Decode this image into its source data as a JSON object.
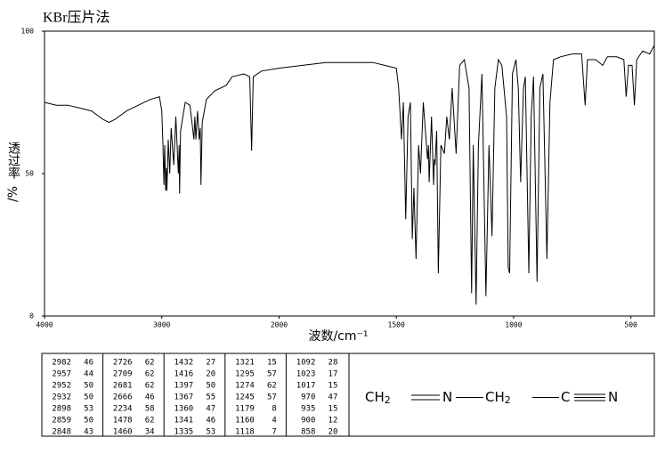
{
  "chart_data": {
    "type": "line",
    "title": "KBr压片法",
    "ylabel": "透过率",
    "yunit": "/%",
    "xlabel": "波数/cm⁻¹",
    "xlim": [
      4000,
      400
    ],
    "xticks": [
      4000,
      3000,
      2000,
      1500,
      1000,
      500
    ],
    "ylim": [
      0,
      100
    ],
    "yticks": [
      0,
      50,
      100
    ],
    "color": "#000000",
    "x": [
      4000,
      3900,
      3800,
      3700,
      3600,
      3500,
      3450,
      3400,
      3300,
      3200,
      3100,
      3020,
      3000,
      2990,
      2982,
      2975,
      2967,
      2960,
      2957,
      2952,
      2945,
      2932,
      2920,
      2898,
      2880,
      2859,
      2852,
      2848,
      2840,
      2800,
      2760,
      2726,
      2718,
      2709,
      2695,
      2681,
      2672,
      2666,
      2655,
      2620,
      2550,
      2450,
      2400,
      2300,
      2250,
      2234,
      2220,
      2150,
      2000,
      1900,
      1800,
      1700,
      1600,
      1550,
      1500,
      1490,
      1478,
      1470,
      1460,
      1450,
      1440,
      1432,
      1425,
      1416,
      1405,
      1397,
      1385,
      1367,
      1363,
      1360,
      1350,
      1341,
      1338,
      1335,
      1328,
      1321,
      1310,
      1295,
      1285,
      1274,
      1262,
      1245,
      1230,
      1210,
      1190,
      1179,
      1172,
      1160,
      1150,
      1135,
      1118,
      1105,
      1092,
      1080,
      1065,
      1050,
      1030,
      1023,
      1017,
      1005,
      990,
      980,
      970,
      958,
      950,
      935,
      925,
      915,
      900,
      888,
      875,
      858,
      845,
      830,
      800,
      750,
      710,
      695,
      685,
      650,
      620,
      600,
      560,
      530,
      520,
      510,
      495,
      485,
      475,
      450,
      420,
      400
    ],
    "values": [
      75,
      74,
      74,
      73,
      72,
      69,
      68,
      69,
      72,
      74,
      76,
      77,
      72,
      60,
      46,
      60,
      44,
      52,
      44,
      50,
      62,
      50,
      66,
      53,
      70,
      50,
      60,
      43,
      65,
      75,
      74,
      62,
      70,
      62,
      72,
      62,
      66,
      46,
      68,
      76,
      79,
      81,
      84,
      85,
      84,
      58,
      84,
      86,
      87,
      88,
      89,
      89,
      89,
      88,
      87,
      80,
      62,
      75,
      34,
      70,
      75,
      27,
      45,
      20,
      60,
      50,
      75,
      55,
      60,
      47,
      70,
      46,
      55,
      53,
      65,
      15,
      60,
      57,
      70,
      62,
      80,
      57,
      88,
      90,
      80,
      8,
      60,
      4,
      60,
      85,
      7,
      60,
      28,
      80,
      90,
      88,
      70,
      17,
      15,
      85,
      90,
      80,
      47,
      80,
      84,
      15,
      70,
      84,
      12,
      80,
      85,
      20,
      75,
      90,
      91,
      92,
      92,
      74,
      90,
      90,
      88,
      91,
      91,
      90,
      77,
      88,
      88,
      74,
      90,
      93,
      92,
      95
    ]
  },
  "table": {
    "blocks": [
      [
        [
          2982,
          46
        ],
        [
          2957,
          44
        ],
        [
          2952,
          50
        ],
        [
          2932,
          50
        ],
        [
          2898,
          53
        ],
        [
          2859,
          50
        ],
        [
          2848,
          43
        ]
      ],
      [
        [
          2726,
          62
        ],
        [
          2709,
          62
        ],
        [
          2681,
          62
        ],
        [
          2666,
          46
        ],
        [
          2234,
          58
        ],
        [
          1478,
          62
        ],
        [
          1460,
          34
        ]
      ],
      [
        [
          1432,
          27
        ],
        [
          1416,
          20
        ],
        [
          1397,
          50
        ],
        [
          1367,
          55
        ],
        [
          1360,
          47
        ],
        [
          1341,
          46
        ],
        [
          1335,
          53
        ]
      ],
      [
        [
          1321,
          15
        ],
        [
          1295,
          57
        ],
        [
          1274,
          62
        ],
        [
          1245,
          57
        ],
        [
          1179,
          8
        ],
        [
          1160,
          4
        ],
        [
          1118,
          7
        ]
      ],
      [
        [
          1092,
          28
        ],
        [
          1023,
          17
        ],
        [
          1017,
          15
        ],
        [
          970,
          47
        ],
        [
          935,
          15
        ],
        [
          900,
          12
        ],
        [
          858,
          20
        ]
      ]
    ]
  },
  "structure": {
    "atoms": [
      {
        "symbol": "CH",
        "sub": "2"
      },
      {
        "symbol": "N"
      },
      {
        "symbol": "CH",
        "sub": "2"
      },
      {
        "symbol": "C"
      },
      {
        "symbol": "N"
      }
    ]
  }
}
